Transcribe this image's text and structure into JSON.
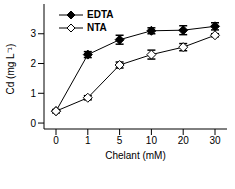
{
  "chart_data": {
    "type": "line",
    "x_label": "Chelant (mM)",
    "y_label": "Cd (mg L⁻¹)",
    "categories": [
      "0",
      "1",
      "5",
      "10",
      "20",
      "30"
    ],
    "ylim": [
      -0.2,
      4
    ],
    "yticks": [
      0,
      1,
      2,
      3
    ],
    "legend": "upper left",
    "series": [
      {
        "name": "EDTA",
        "color": "#000000",
        "marker": "diamond",
        "values": [
          0.4,
          2.3,
          2.8,
          3.1,
          3.12,
          3.25
        ],
        "errors": [
          0.05,
          0.1,
          0.15,
          0.1,
          0.15,
          0.12
        ]
      },
      {
        "name": "NTA",
        "color": "#000000",
        "marker": "open_diamond",
        "values": [
          0.4,
          0.85,
          1.95,
          2.3,
          2.55,
          2.95
        ],
        "errors": [
          0.05,
          0.07,
          0.1,
          0.15,
          0.12,
          0.05
        ]
      }
    ]
  }
}
